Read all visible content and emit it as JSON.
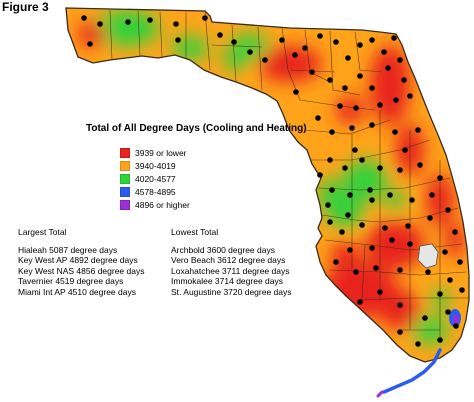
{
  "figure_label": "Figure 3",
  "title": "Total of All Degree Days (Cooling and Heating)",
  "legend": [
    {
      "label": "3939 or lower",
      "color": "#e8241e"
    },
    {
      "label": "3940-4019",
      "color": "#ffa41a"
    },
    {
      "label": "4020-4577",
      "color": "#2fd33a"
    },
    {
      "label": "4578-4895",
      "color": "#2b5cf2"
    },
    {
      "label": "4896 or higher",
      "color": "#9b2fd6"
    }
  ],
  "largest": {
    "heading": "Largest Total",
    "items": [
      "Hialeah 5087 degree days",
      "Key West AP 4892 degree days",
      "Key West NAS 4856 degree days",
      "Tavernier 4519 degree days",
      "Miami Int AP 4510 degree days"
    ]
  },
  "lowest": {
    "heading": "Lowest Total",
    "items": [
      "Archbold 3600 degree days",
      "Vero Beach 3612 degree days",
      "Loxahatchee 3711 degree days",
      "Immokalee 3714 degree days",
      "St. Augustine 3720 degree days"
    ]
  },
  "colors": {
    "high": "#e8241e",
    "mid_high": "#ffa41a",
    "mid": "#2fd33a",
    "low": "#2b5cf2",
    "lowest_band": "#9b2fd6",
    "border": "#3a2a1a",
    "station": "#000000"
  }
}
